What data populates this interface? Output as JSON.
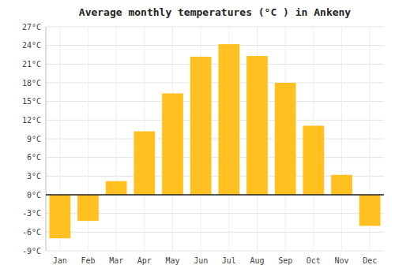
{
  "chart_data": {
    "type": "bar",
    "title": "Average monthly temperatures (°C ) in Ankeny",
    "categories": [
      "Jan",
      "Feb",
      "Mar",
      "Apr",
      "May",
      "Jun",
      "Jul",
      "Aug",
      "Sep",
      "Oct",
      "Nov",
      "Dec"
    ],
    "values": [
      -7.0,
      -4.2,
      2.2,
      10.2,
      16.3,
      22.2,
      24.2,
      22.3,
      18.0,
      11.1,
      3.2,
      -5.0
    ],
    "color": "#FFC020",
    "ylim": [
      -9,
      27
    ],
    "yticks": [
      {
        "value": -9,
        "label": "-9°C"
      },
      {
        "value": -6,
        "label": "-6°C"
      },
      {
        "value": -3,
        "label": "-3°C"
      },
      {
        "value": 0,
        "label": "0°C"
      },
      {
        "value": 3,
        "label": "3°C"
      },
      {
        "value": 6,
        "label": "6°C"
      },
      {
        "value": 9,
        "label": "9°C"
      },
      {
        "value": 12,
        "label": "12°C"
      },
      {
        "value": 15,
        "label": "15°C"
      },
      {
        "value": 18,
        "label": "18°C"
      },
      {
        "value": 21,
        "label": "21°C"
      },
      {
        "value": 24,
        "label": "24°C"
      },
      {
        "value": 27,
        "label": "27°C"
      }
    ],
    "grid": true
  }
}
